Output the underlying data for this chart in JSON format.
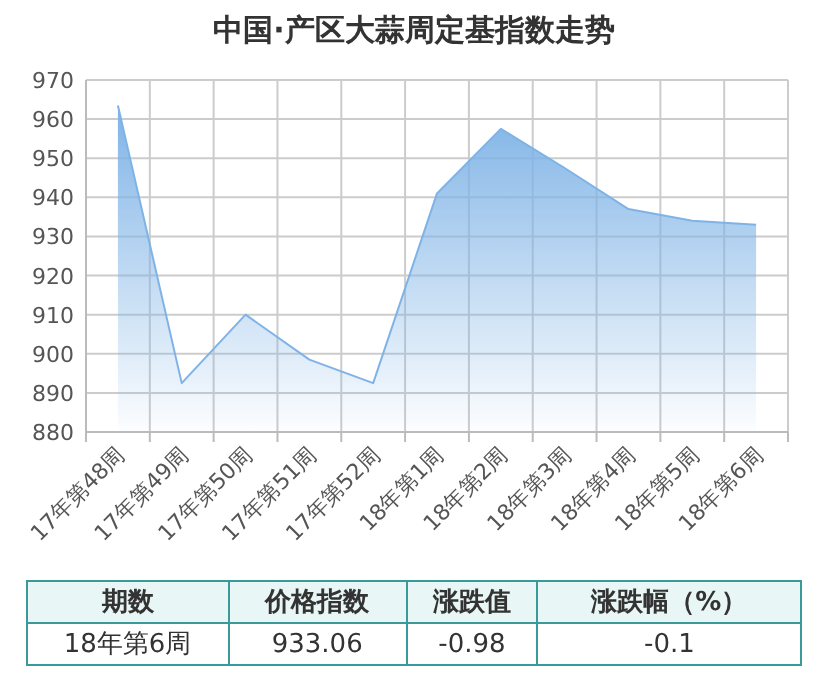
{
  "chart_data": {
    "type": "area",
    "title": "中国·产区大蒜周定基指数走势",
    "categories": [
      "17年第48周",
      "17年第49周",
      "17年第50周",
      "17年第51周",
      "17年第52周",
      "18年第1周",
      "18年第2周",
      "18年第3周",
      "18年第4周",
      "18年第5周",
      "18年第6周"
    ],
    "series": [
      {
        "color": "#7fb3e6",
        "values": [
          963.5,
          892.5,
          910,
          898.5,
          892.5,
          941,
          957.5,
          947.5,
          937,
          934,
          933
        ]
      }
    ],
    "ylim": [
      880,
      970
    ],
    "yticks": [
      880,
      890,
      900,
      910,
      920,
      930,
      940,
      950,
      960,
      970
    ],
    "grid": true,
    "annotations": [
      "期数",
      "价格指数",
      "涨跌值",
      "涨跌幅（%）",
      "18年第6周",
      "933.06",
      "-0.98",
      "-0.1"
    ]
  }
}
